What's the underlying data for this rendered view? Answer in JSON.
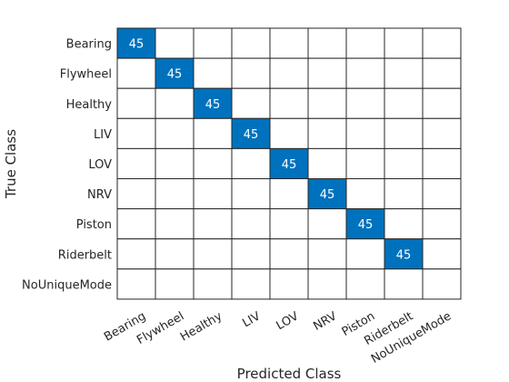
{
  "chart_data": {
    "type": "heatmap",
    "title": "",
    "xlabel": "Predicted Class",
    "ylabel": "True Class",
    "classes": [
      "Bearing",
      "Flywheel",
      "Healthy",
      "LIV",
      "LOV",
      "NRV",
      "Piston",
      "Riderbelt",
      "NoUniqueMode"
    ],
    "matrix": [
      [
        45,
        0,
        0,
        0,
        0,
        0,
        0,
        0,
        0
      ],
      [
        0,
        45,
        0,
        0,
        0,
        0,
        0,
        0,
        0
      ],
      [
        0,
        0,
        45,
        0,
        0,
        0,
        0,
        0,
        0
      ],
      [
        0,
        0,
        0,
        45,
        0,
        0,
        0,
        0,
        0
      ],
      [
        0,
        0,
        0,
        0,
        45,
        0,
        0,
        0,
        0
      ],
      [
        0,
        0,
        0,
        0,
        0,
        45,
        0,
        0,
        0
      ],
      [
        0,
        0,
        0,
        0,
        0,
        0,
        45,
        0,
        0
      ],
      [
        0,
        0,
        0,
        0,
        0,
        0,
        0,
        45,
        0
      ],
      [
        0,
        0,
        0,
        0,
        0,
        0,
        0,
        0,
        0
      ]
    ],
    "colors": {
      "filled": "#0072bd",
      "empty": "#ffffff",
      "grid": "#262626",
      "filled_text": "#ffffff"
    }
  }
}
